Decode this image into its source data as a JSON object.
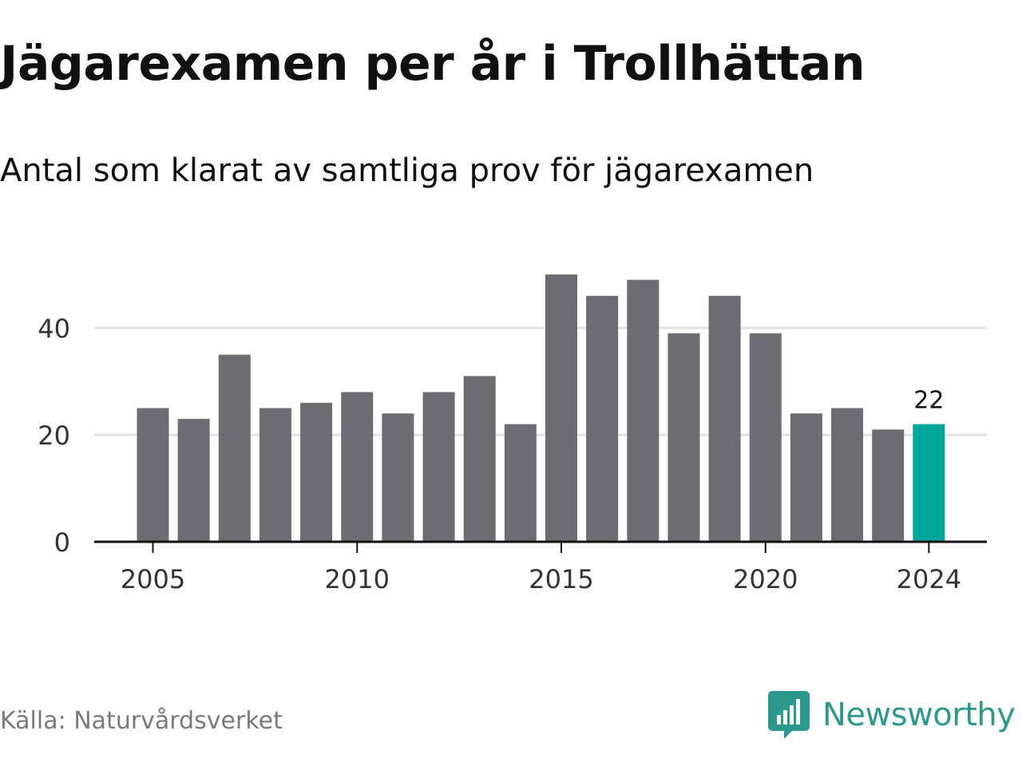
{
  "header": {
    "title": "Jägarexamen per år i Trollhättan",
    "subtitle": "Antal som klarat av samtliga prov för jägarexamen"
  },
  "footer": {
    "source": "Källa: Naturvårdsverket",
    "brand": "Newsworthy"
  },
  "colors": {
    "bar": "#6d6c73",
    "highlight": "#00a69a",
    "grid": "#e2e2e2",
    "axis": "#111111",
    "brand": "#2b9a8c"
  },
  "icons": {
    "brand_logo": "newsworthy-logo-icon"
  },
  "chart_data": {
    "type": "bar",
    "title": "Jägarexamen per år i Trollhättan",
    "subtitle": "Antal som klarat av samtliga prov för jägarexamen",
    "categories": [
      2005,
      2006,
      2007,
      2008,
      2009,
      2010,
      2011,
      2012,
      2013,
      2014,
      2015,
      2016,
      2017,
      2018,
      2019,
      2020,
      2021,
      2022,
      2023,
      2024
    ],
    "values": [
      25,
      23,
      35,
      25,
      26,
      28,
      24,
      28,
      31,
      22,
      50,
      46,
      49,
      39,
      46,
      39,
      24,
      25,
      21,
      22
    ],
    "highlight_category": 2024,
    "data_labels": [
      {
        "category": 2024,
        "text": "22"
      }
    ],
    "xticks": [
      2005,
      2010,
      2015,
      2020,
      2024
    ],
    "yticks": [
      0,
      20,
      40
    ],
    "ylim": [
      0,
      53
    ],
    "grid": "horizontal",
    "xlabel": "",
    "ylabel": ""
  }
}
